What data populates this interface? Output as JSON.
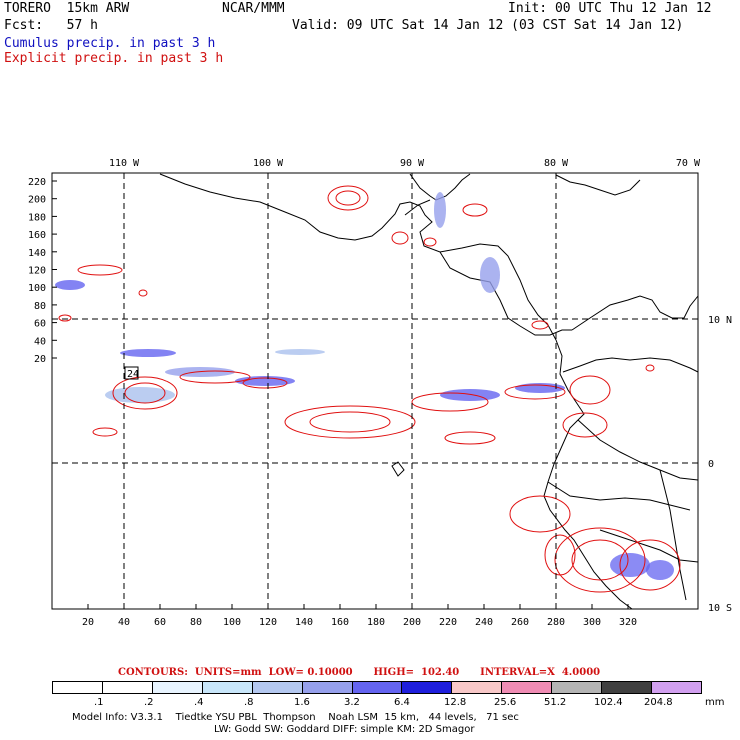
{
  "header": {
    "model": "TORERO  15km ARW",
    "org": "NCAR/MMM",
    "init": "Init: 00 UTC Thu 12 Jan 12",
    "fcst": "Fcst:   57 h",
    "valid": "Valid: 09 UTC Sat 14 Jan 12 (03 CST Sat 14 Jan 12)",
    "cumulus": "Cumulus precip. in past 3 h",
    "explicit": "Explicit precip. in past 3 h"
  },
  "axes": {
    "left_ticks": [
      "220",
      "200",
      "180",
      "160",
      "140",
      "120",
      "100",
      "80",
      "60",
      "40",
      "20"
    ],
    "bottom_ticks": [
      "20",
      "40",
      "60",
      "80",
      "100",
      "120",
      "140",
      "160",
      "180",
      "200",
      "220",
      "240",
      "260",
      "280",
      "300",
      "320"
    ],
    "top_ticks": [
      "110 W",
      "100 W",
      "90 W",
      "80 W",
      "70 W"
    ],
    "right_ticks": [
      "10 N",
      "0",
      "10 S"
    ]
  },
  "annotation": "24",
  "contour_info": "CONTOURS:  UNITS=mm  LOW= 0.10000      HIGH=  102.40      INTERVAL=X  4.0000",
  "colorbar": {
    "labels": [
      ".1",
      ".2",
      ".4",
      ".8",
      "1.6",
      "3.2",
      "6.4",
      "12.8",
      "25.6",
      "51.2",
      "102.4",
      "204.8"
    ],
    "unit": "mm",
    "colors": [
      "#ffffff",
      "#ffffff",
      "#e8f4ff",
      "#c8e6fa",
      "#b4c8f0",
      "#96a0ec",
      "#6464f0",
      "#1e1edc",
      "#f8c8c8",
      "#f08cb4",
      "#b4b4b4",
      "#404040",
      "#d2a0f0"
    ]
  },
  "model_info": {
    "line1": "Model Info: V3.3.1    Tiedtke YSU PBL  Thompson    Noah LSM  15 km,   44 levels,   71 sec",
    "line2": "LW: Godd SW: Goddard DIFF: simple KM: 2D Smagor"
  }
}
